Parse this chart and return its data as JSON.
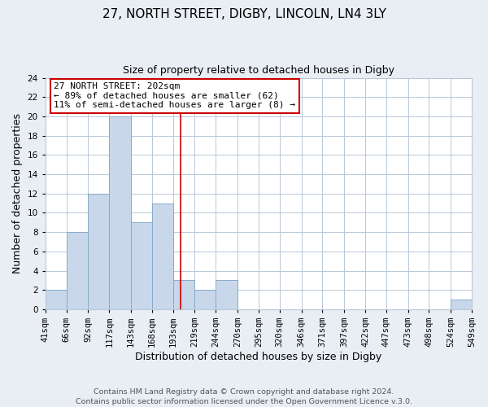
{
  "title": "27, NORTH STREET, DIGBY, LINCOLN, LN4 3LY",
  "subtitle": "Size of property relative to detached houses in Digby",
  "xlabel": "Distribution of detached houses by size in Digby",
  "ylabel": "Number of detached properties",
  "bar_color": "#c8d8ea",
  "bar_edge_color": "#88aac8",
  "bin_edges": [
    41,
    66,
    92,
    117,
    143,
    168,
    193,
    219,
    244,
    270,
    295,
    320,
    346,
    371,
    397,
    422,
    447,
    473,
    498,
    524,
    549
  ],
  "bin_labels": [
    "41sqm",
    "66sqm",
    "92sqm",
    "117sqm",
    "143sqm",
    "168sqm",
    "193sqm",
    "219sqm",
    "244sqm",
    "270sqm",
    "295sqm",
    "320sqm",
    "346sqm",
    "371sqm",
    "397sqm",
    "422sqm",
    "447sqm",
    "473sqm",
    "498sqm",
    "524sqm",
    "549sqm"
  ],
  "counts": [
    2,
    8,
    12,
    20,
    9,
    11,
    3,
    2,
    3,
    0,
    0,
    0,
    0,
    0,
    0,
    0,
    0,
    0,
    0,
    1
  ],
  "ylim": [
    0,
    24
  ],
  "yticks": [
    0,
    2,
    4,
    6,
    8,
    10,
    12,
    14,
    16,
    18,
    20,
    22,
    24
  ],
  "vline_x": 202,
  "vline_color": "#cc0000",
  "annotation_line1": "27 NORTH STREET: 202sqm",
  "annotation_line2": "← 89% of detached houses are smaller (62)",
  "annotation_line3": "11% of semi-detached houses are larger (8) →",
  "footer1": "Contains HM Land Registry data © Crown copyright and database right 2024.",
  "footer2": "Contains public sector information licensed under the Open Government Licence v.3.0.",
  "background_color": "#e8eef4",
  "plot_bg_color": "#ffffff",
  "grid_color": "#b8c8d8",
  "title_fontsize": 11,
  "subtitle_fontsize": 9,
  "axis_label_fontsize": 9,
  "tick_fontsize": 7.5,
  "annotation_fontsize": 8,
  "footer_fontsize": 6.8
}
